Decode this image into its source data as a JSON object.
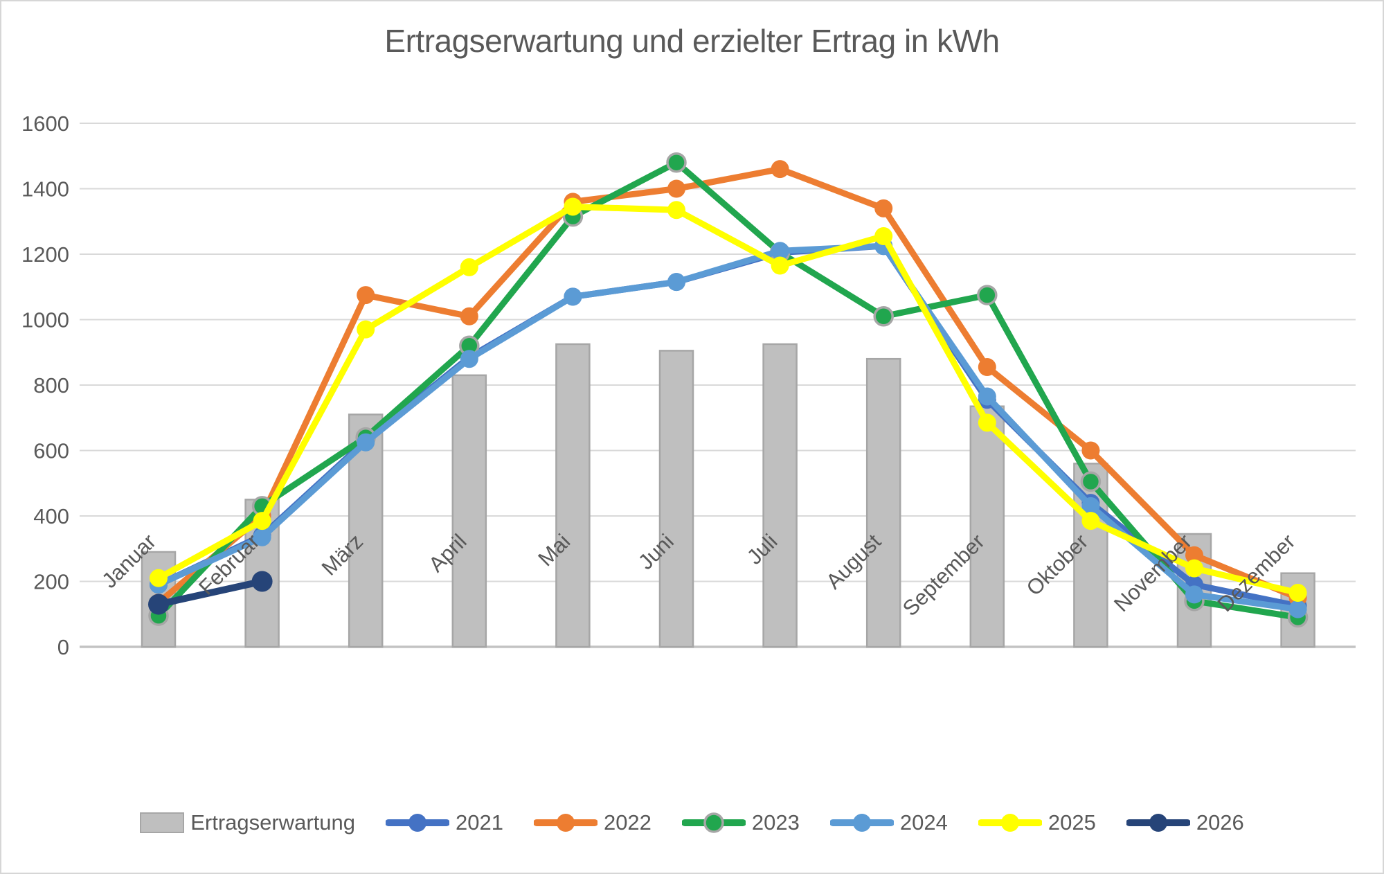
{
  "chart_data": {
    "type": "bar+line combo",
    "title": "Ertragserwartung und erzielter Ertrag in kWh",
    "categories": [
      "Januar",
      "Februar",
      "März",
      "April",
      "Mai",
      "Juni",
      "Juli",
      "August",
      "September",
      "Oktober",
      "November",
      "Dezember"
    ],
    "bar_series": {
      "name": "Ertragserwartung",
      "color": "#BFBFBF",
      "border_color": "#A6A6A6",
      "values": [
        290,
        450,
        710,
        830,
        925,
        905,
        925,
        880,
        735,
        560,
        345,
        225
      ]
    },
    "line_series": [
      {
        "name": "2021",
        "color": "#4472C4",
        "values": [
          190,
          340,
          630,
          885,
          1070,
          1115,
          1205,
          1225,
          755,
          440,
          190,
          125
        ]
      },
      {
        "name": "2022",
        "color": "#ED7D31",
        "values": [
          135,
          400,
          1075,
          1010,
          1360,
          1400,
          1460,
          1340,
          855,
          600,
          280,
          150
        ]
      },
      {
        "name": "2023",
        "color": "#21A64E",
        "marker_ring": "#A6A6A6",
        "values": [
          95,
          430,
          640,
          920,
          1315,
          1480,
          1205,
          1010,
          1075,
          505,
          140,
          90
        ]
      },
      {
        "name": "2024",
        "color": "#5B9BD5",
        "values": [
          190,
          335,
          625,
          880,
          1070,
          1115,
          1210,
          1225,
          765,
          430,
          160,
          115
        ]
      },
      {
        "name": "2025",
        "color": "#FFFF00",
        "values": [
          210,
          385,
          970,
          1160,
          1345,
          1335,
          1165,
          1255,
          685,
          385,
          240,
          165
        ]
      },
      {
        "name": "2026",
        "color": "#264478",
        "values": [
          130,
          200,
          null,
          null,
          null,
          null,
          null,
          null,
          null,
          null,
          null,
          null
        ]
      }
    ],
    "y_axis": {
      "min": 0,
      "max": 1600,
      "step": 200,
      "tick_labels": [
        "0",
        "200",
        "400",
        "600",
        "800",
        "1000",
        "1200",
        "1400",
        "1600"
      ]
    },
    "x_axis": {
      "label_rotation_deg": -45
    },
    "grid": true,
    "legend_position": "bottom"
  },
  "styles": {
    "text_color": "#595959",
    "gridline_color": "#D9D9D9",
    "zero_line_color": "#C3C3C3",
    "background": "#FFFFFF",
    "frame_border": "#D6D6D6"
  }
}
